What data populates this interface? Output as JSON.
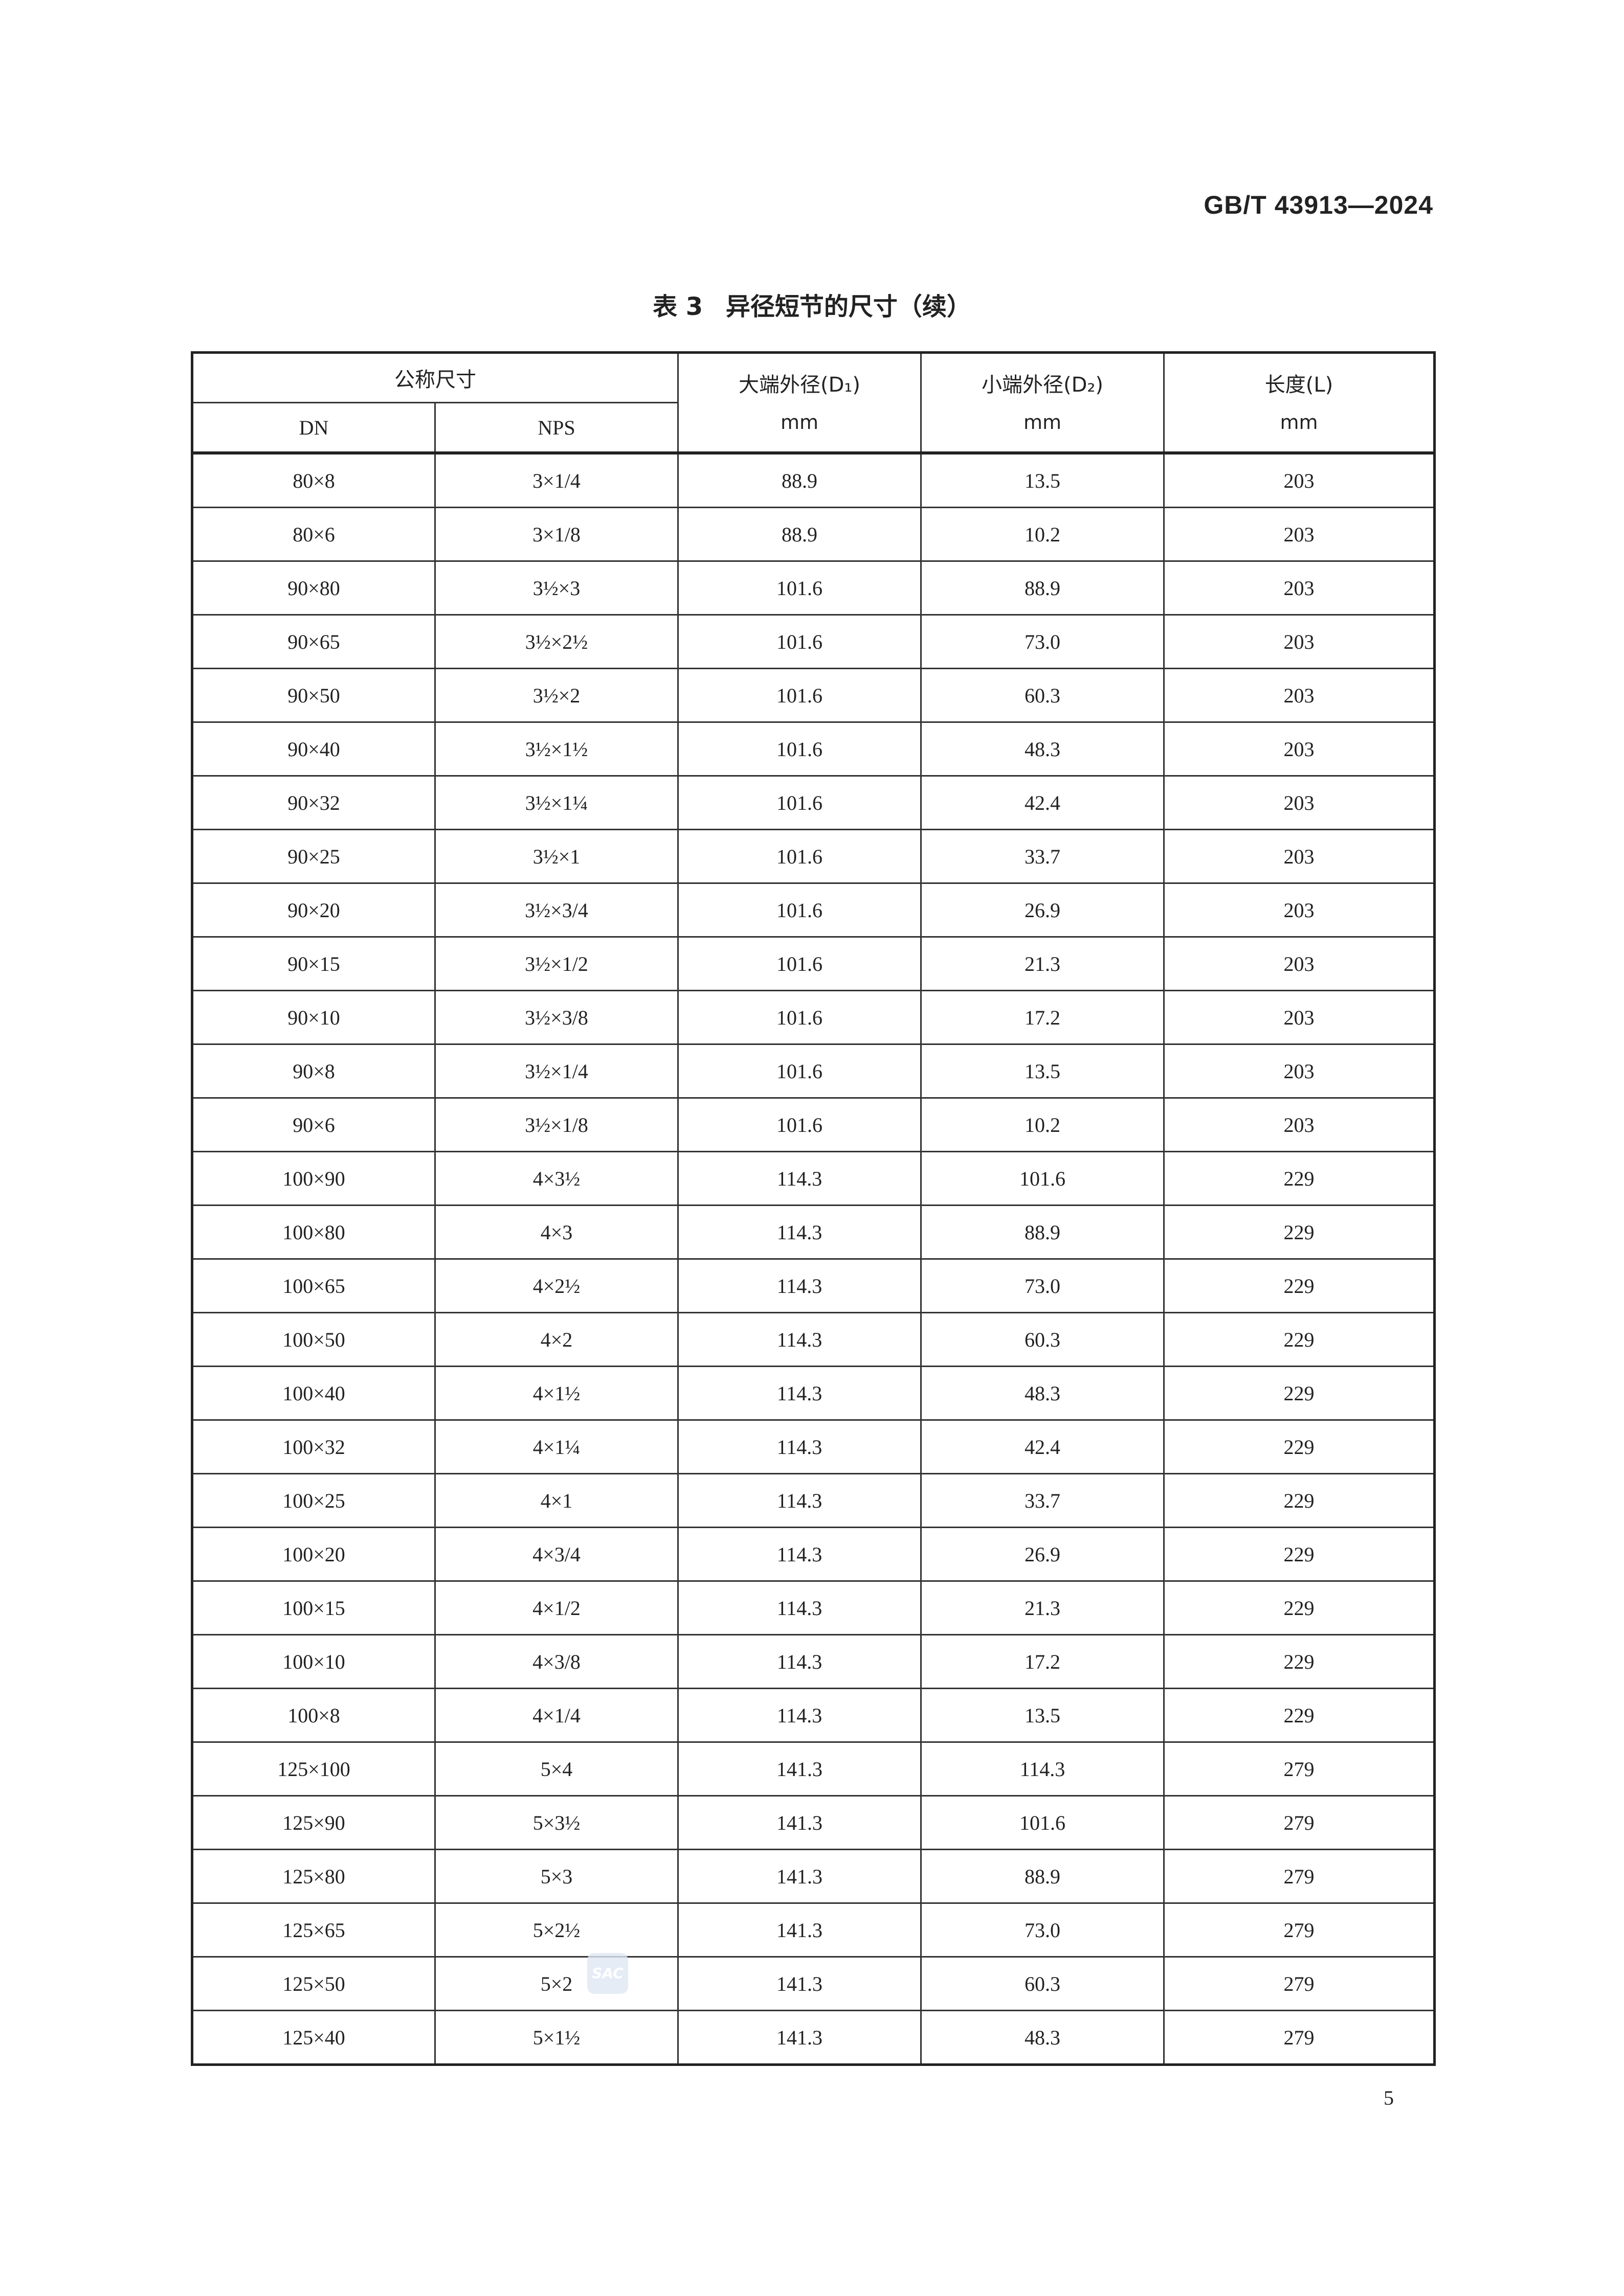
{
  "header": {
    "standard_code": "GB/T 43913—2024"
  },
  "table": {
    "title_number": "表 3",
    "title_text": "异径短节的尺寸（续）",
    "columns": {
      "nominal_size": "公称尺寸",
      "dn": "DN",
      "nps": "NPS",
      "d1": "大端外径(D₁)",
      "d2": "小端外径(D₂)",
      "length": "长度(L)",
      "unit": "mm"
    },
    "rows": [
      [
        "80×8",
        "3×1/4",
        "88.9",
        "13.5",
        "203"
      ],
      [
        "80×6",
        "3×1/8",
        "88.9",
        "10.2",
        "203"
      ],
      [
        "90×80",
        "3½×3",
        "101.6",
        "88.9",
        "203"
      ],
      [
        "90×65",
        "3½×2½",
        "101.6",
        "73.0",
        "203"
      ],
      [
        "90×50",
        "3½×2",
        "101.6",
        "60.3",
        "203"
      ],
      [
        "90×40",
        "3½×1½",
        "101.6",
        "48.3",
        "203"
      ],
      [
        "90×32",
        "3½×1¼",
        "101.6",
        "42.4",
        "203"
      ],
      [
        "90×25",
        "3½×1",
        "101.6",
        "33.7",
        "203"
      ],
      [
        "90×20",
        "3½×3/4",
        "101.6",
        "26.9",
        "203"
      ],
      [
        "90×15",
        "3½×1/2",
        "101.6",
        "21.3",
        "203"
      ],
      [
        "90×10",
        "3½×3/8",
        "101.6",
        "17.2",
        "203"
      ],
      [
        "90×8",
        "3½×1/4",
        "101.6",
        "13.5",
        "203"
      ],
      [
        "90×6",
        "3½×1/8",
        "101.6",
        "10.2",
        "203"
      ],
      [
        "100×90",
        "4×3½",
        "114.3",
        "101.6",
        "229"
      ],
      [
        "100×80",
        "4×3",
        "114.3",
        "88.9",
        "229"
      ],
      [
        "100×65",
        "4×2½",
        "114.3",
        "73.0",
        "229"
      ],
      [
        "100×50",
        "4×2",
        "114.3",
        "60.3",
        "229"
      ],
      [
        "100×40",
        "4×1½",
        "114.3",
        "48.3",
        "229"
      ],
      [
        "100×32",
        "4×1¼",
        "114.3",
        "42.4",
        "229"
      ],
      [
        "100×25",
        "4×1",
        "114.3",
        "33.7",
        "229"
      ],
      [
        "100×20",
        "4×3/4",
        "114.3",
        "26.9",
        "229"
      ],
      [
        "100×15",
        "4×1/2",
        "114.3",
        "21.3",
        "229"
      ],
      [
        "100×10",
        "4×3/8",
        "114.3",
        "17.2",
        "229"
      ],
      [
        "100×8",
        "4×1/4",
        "114.3",
        "13.5",
        "229"
      ],
      [
        "125×100",
        "5×4",
        "141.3",
        "114.3",
        "279"
      ],
      [
        "125×90",
        "5×3½",
        "141.3",
        "101.6",
        "279"
      ],
      [
        "125×80",
        "5×3",
        "141.3",
        "88.9",
        "279"
      ],
      [
        "125×65",
        "5×2½",
        "141.3",
        "73.0",
        "279"
      ],
      [
        "125×50",
        "5×2",
        "141.3",
        "60.3",
        "279"
      ],
      [
        "125×40",
        "5×1½",
        "141.3",
        "48.3",
        "279"
      ]
    ]
  },
  "watermark": {
    "logo_text": "SAC"
  },
  "footer": {
    "page_number": "5"
  }
}
